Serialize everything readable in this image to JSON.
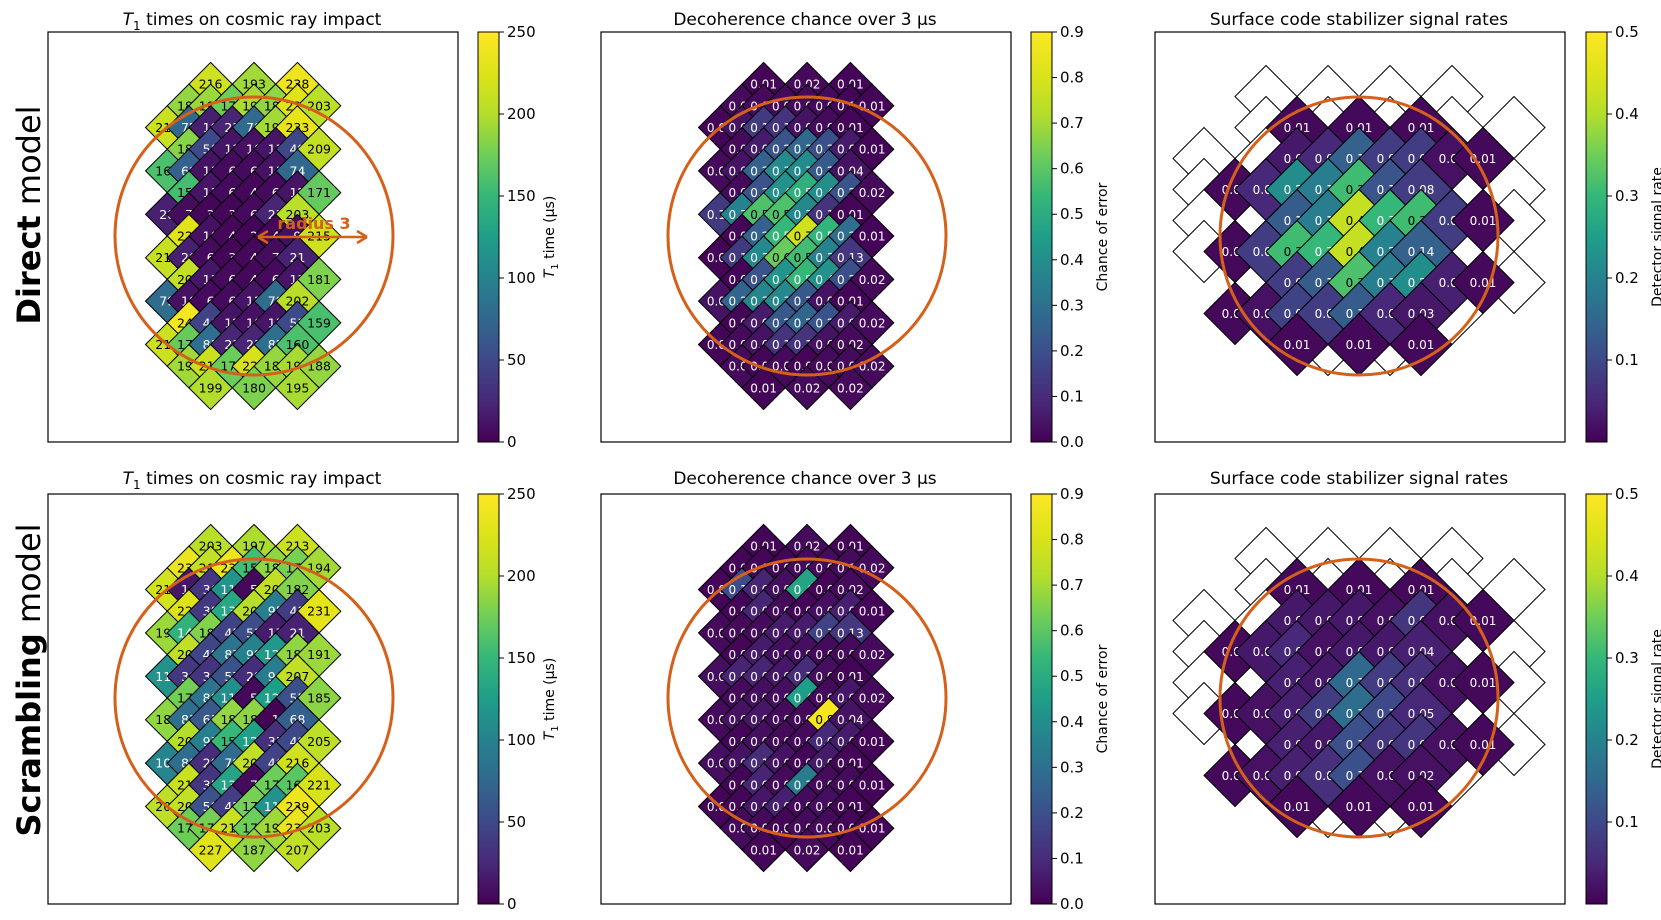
{
  "rows": [
    {
      "label_bold": "Direct",
      "label_rest": " model"
    },
    {
      "label_bold": "Scrambling",
      "label_rest": " model"
    }
  ],
  "panel_titles": {
    "t1": "times on cosmic ray impact",
    "decoherence": "Decoherence chance over 3 μs",
    "stabilizer": "Surface code stabilizer signal rates"
  },
  "colorbars": {
    "t1": {
      "label": "time (μs)",
      "ticks": [
        "0",
        "50",
        "100",
        "150",
        "200",
        "250"
      ],
      "min": 0,
      "max": 250
    },
    "decoherence": {
      "label": "Chance of error",
      "ticks": [
        "0.0",
        "0.1",
        "0.2",
        "0.3",
        "0.4",
        "0.5",
        "0.6",
        "0.7",
        "0.8",
        "0.9"
      ],
      "min": 0,
      "max": 0.9
    },
    "stabilizer": {
      "label": "Detector signal rate",
      "ticks": [
        "0.1",
        "0.2",
        "0.3",
        "0.4",
        "0.5"
      ],
      "min": 0,
      "max": 0.5
    }
  },
  "annotation": {
    "radius_label": "radius 3"
  },
  "colors": {
    "impact_circle": "#d5601a",
    "tile_border": "#000000"
  },
  "chart_data": [
    {
      "type": "heatmap",
      "row": "Direct model",
      "title": "T1 times on cosmic ray impact",
      "value_label": "T1 time (μs)",
      "range": [
        0,
        250
      ],
      "rows": [
        [
          216,
          193,
          238
        ],
        [
          188,
          191,
          175,
          196,
          187,
          228,
          203
        ],
        [
          213,
          75,
          19,
          23,
          78,
          194,
          233
        ],
        [
          184,
          50,
          13,
          10,
          13,
          49,
          209
        ],
        [
          160,
          69,
          11,
          6,
          6,
          11,
          74
        ],
        [
          157,
          13,
          6,
          4,
          6,
          12,
          171
        ],
        [
          20,
          7,
          3,
          3,
          6,
          23,
          203
        ],
        [
          229,
          10,
          4,
          2,
          4,
          9,
          215
        ],
        [
          212,
          20,
          6,
          3,
          4,
          7,
          21
        ],
        [
          208,
          13,
          6,
          4,
          6,
          13,
          181
        ],
        [
          79,
          10,
          6,
          6,
          12,
          79,
          202
        ],
        [
          244,
          46,
          12,
          10,
          13,
          51,
          159
        ],
        [
          214,
          172,
          81,
          23,
          23,
          82,
          160
        ],
        [
          193,
          213,
          173,
          222,
          189,
          195,
          188
        ],
        [
          199,
          180,
          195
        ]
      ]
    },
    {
      "type": "heatmap",
      "row": "Direct model",
      "title": "Decoherence chance over 3 μs",
      "value_label": "Chance of error",
      "range": [
        0,
        0.9
      ],
      "rows": [
        [
          0.01,
          0.02,
          0.01
        ],
        [
          0.02,
          0.02,
          0.02,
          0.02,
          0.02,
          0.01,
          0.01
        ],
        [
          0.01,
          0.04,
          0.14,
          0.12,
          0.04,
          0.02,
          0.01
        ],
        [
          0.02,
          0.06,
          0.21,
          0.27,
          0.2,
          0.06,
          0.01
        ],
        [
          0.02,
          0.04,
          0.25,
          0.39,
          0.39,
          0.23,
          0.04
        ],
        [
          0.02,
          0.21,
          0.41,
          0.51,
          0.4,
          0.21,
          0.02
        ],
        [
          0.14,
          0.36,
          0.58,
          0.58,
          0.38,
          0.12,
          0.01
        ],
        [
          0.01,
          0.25,
          0.54,
          0.78,
          0.53,
          0.29,
          0.01
        ],
        [
          0.01,
          0.14,
          0.38,
          0.62,
          0.56,
          0.36,
          0.13
        ],
        [
          0.01,
          0.21,
          0.42,
          0.54,
          0.41,
          0.2,
          0.02
        ],
        [
          0.04,
          0.26,
          0.37,
          0.38,
          0.22,
          0.04,
          0.01
        ],
        [
          0.01,
          0.06,
          0.22,
          0.26,
          0.21,
          0.06,
          0.02
        ],
        [
          0.01,
          0.02,
          0.04,
          0.12,
          0.12,
          0.04,
          0.02
        ],
        [
          0.02,
          0.01,
          0.02,
          0.01,
          0.02,
          0.02,
          0.02
        ],
        [
          0.01,
          0.02,
          0.02
        ]
      ]
    },
    {
      "type": "heatmap",
      "row": "Direct model",
      "title": "Surface code stabilizer signal rates",
      "value_label": "Detector signal rate",
      "range": [
        0,
        0.5
      ],
      "rows": [
        [
          0.01,
          0.01,
          0.01
        ],
        [
          0.03,
          0.05,
          0.14,
          0.08,
          0.08,
          0.02,
          0.01
        ],
        [
          0.01,
          0.05,
          0.22,
          0.19,
          0.31,
          0.12,
          0.08
        ],
        [
          0.13,
          0.19,
          0.42,
          0.3,
          0.31,
          0.08,
          0.01
        ],
        [
          0.01,
          0.08,
          0.31,
          0.3,
          0.42,
          0.2,
          0.14
        ],
        [
          0.08,
          0.13,
          0.32,
          0.19,
          0.22,
          0.04,
          0.01
        ],
        [
          0.01,
          0.02,
          0.09,
          0.08,
          0.13,
          0.05,
          0.03
        ],
        [
          0.01,
          0.01,
          0.01
        ]
      ]
    },
    {
      "type": "heatmap",
      "row": "Scrambling model",
      "title": "T1 times on cosmic ray impact",
      "value_label": "T1 time (μs)",
      "range": [
        0,
        250
      ],
      "rows": [
        [
          203,
          197,
          213
        ],
        [
          236,
          208,
          235,
          156,
          187,
          178,
          194
        ],
        [
          218,
          14,
          36,
          116,
          5,
          207,
          182
        ],
        [
          226,
          38,
          134,
          201,
          95,
          41,
          231
        ],
        [
          191,
          145,
          182,
          45,
          53,
          17,
          21
        ],
        [
          207,
          48,
          87,
          99,
          120,
          187,
          191
        ],
        [
          114,
          36,
          34,
          57,
          29,
          94,
          207
        ],
        [
          176,
          88,
          112,
          5,
          126,
          55,
          185
        ],
        [
          187,
          81,
          63,
          188,
          186,
          1,
          68
        ],
        [
          200,
          97,
          151,
          127,
          31,
          49,
          205
        ],
        [
          102,
          80,
          29,
          79,
          207,
          46,
          216
        ],
        [
          213,
          35,
          131,
          7,
          174,
          166,
          221
        ],
        [
          205,
          208,
          58,
          42,
          178,
          114,
          239
        ],
        [
          174,
          177,
          213,
          174,
          192,
          234,
          203
        ],
        [
          227,
          187,
          207
        ]
      ]
    },
    {
      "type": "heatmap",
      "row": "Scrambling model",
      "title": "Decoherence chance over 3 μs",
      "value_label": "Chance of error",
      "range": [
        0,
        0.9
      ],
      "rows": [
        [
          0.01,
          0.02,
          0.01
        ],
        [
          0.01,
          0.01,
          0.01,
          0.02,
          0.02,
          0.02,
          0.02
        ],
        [
          0.01,
          0.19,
          0.08,
          0.03,
          0.47,
          0.01,
          0.02
        ],
        [
          0.01,
          0.08,
          0.02,
          0.01,
          0.03,
          0.07,
          0.01
        ],
        [
          0.02,
          0.02,
          0.02,
          0.06,
          0.06,
          0.16,
          0.13
        ],
        [
          0.01,
          0.06,
          0.03,
          0.03,
          0.02,
          0.02,
          0.02
        ],
        [
          0.03,
          0.08,
          0.08,
          0.05,
          0.1,
          0.03,
          0.01
        ],
        [
          0.02,
          0.03,
          0.03,
          0.45,
          0.02,
          0.05,
          0.02
        ],
        [
          0.02,
          0.04,
          0.05,
          0.02,
          0.02,
          0.88,
          0.04
        ],
        [
          0.01,
          0.03,
          0.02,
          0.02,
          0.09,
          0.06,
          0.01
        ],
        [
          0.03,
          0.04,
          0.1,
          0.04,
          0.01,
          0.06,
          0.01
        ],
        [
          0.01,
          0.08,
          0.02,
          0.34,
          0.02,
          0.02,
          0.01
        ],
        [
          0.01,
          0.01,
          0.05,
          0.07,
          0.02,
          0.03,
          0.01
        ],
        [
          0.02,
          0.02,
          0.01,
          0.02,
          0.02,
          0.01,
          0.01
        ],
        [
          0.01,
          0.02,
          0.01
        ]
      ]
    },
    {
      "type": "heatmap",
      "row": "Scrambling model",
      "title": "Surface code stabilizer signal rates",
      "value_label": "Detector signal rate",
      "range": [
        0,
        0.5
      ],
      "rows": [
        [
          0.01,
          0.01,
          0.01
        ],
        [
          0.03,
          0.03,
          0.03,
          0.02,
          0.07,
          0.02,
          0.01
        ],
        [
          0.01,
          0.03,
          0.05,
          0.02,
          0.03,
          0.03,
          0.04
        ],
        [
          0.04,
          0.03,
          0.15,
          0.08,
          0.06,
          0.02,
          0.01
        ],
        [
          0.01,
          0.02,
          0.04,
          0.08,
          0.16,
          0.1,
          0.05
        ],
        [
          0.04,
          0.03,
          0.11,
          0.07,
          0.07,
          0.02,
          0.01
        ],
        [
          0.01,
          0.02,
          0.04,
          0.06,
          0.11,
          0.02,
          0.02
        ],
        [
          0.01,
          0.01,
          0.01
        ]
      ]
    }
  ]
}
